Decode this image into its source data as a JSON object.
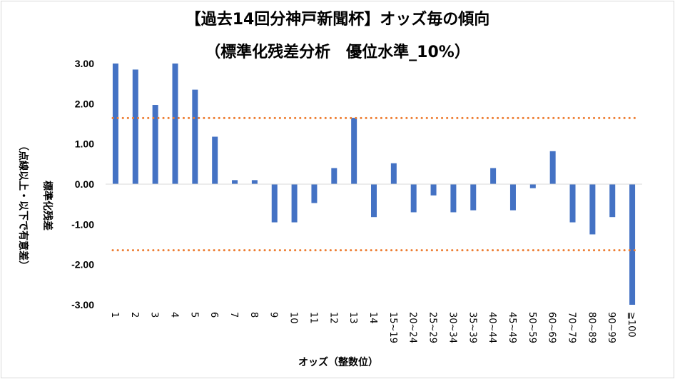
{
  "chart_data": {
    "type": "bar",
    "title": "【過去14回分神戸新聞杯】オッズ毎の傾向",
    "subtitle": "（標準化残差分析　優位水準_10%）",
    "xlabel": "オッズ（整数位）",
    "ylabel_line1": "標準化残差",
    "ylabel_line2": "（点線以上・以下で有意差）",
    "ylim": [
      -3.0,
      3.0
    ],
    "yticks": [
      3.0,
      2.0,
      1.0,
      0.0,
      -1.0,
      -2.0,
      -3.0
    ],
    "ytick_labels": [
      "3.00",
      "2.00",
      "1.00",
      "0.00",
      "-1.00",
      "-2.00",
      "-3.00"
    ],
    "categories": [
      "1",
      "2",
      "3",
      "4",
      "5",
      "6",
      "7",
      "8",
      "9",
      "10",
      "11",
      "12",
      "13",
      "14",
      "15~19",
      "20~24",
      "25~29",
      "30~34",
      "35~39",
      "40~44",
      "45~49",
      "50~59",
      "60~69",
      "70~79",
      "80~89",
      "90~99",
      "≧100"
    ],
    "values": [
      3.0,
      2.85,
      1.97,
      3.0,
      2.35,
      1.18,
      0.1,
      0.1,
      -0.95,
      -0.95,
      -0.47,
      0.4,
      1.65,
      -0.82,
      0.52,
      -0.7,
      -0.28,
      -0.7,
      -0.65,
      0.4,
      -0.65,
      -0.1,
      0.82,
      -0.95,
      -1.25,
      -0.82,
      -3.0
    ],
    "thresholds": [
      1.645,
      -1.645
    ],
    "bar_color": "#4472c4",
    "threshold_color": "#ed7d31",
    "grid": false
  }
}
